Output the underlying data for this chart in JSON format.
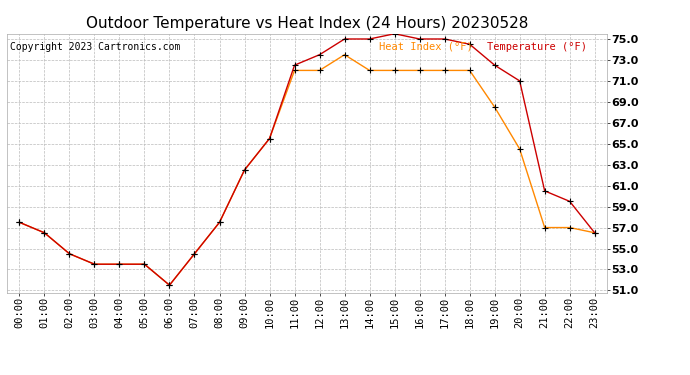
{
  "title": "Outdoor Temperature vs Heat Index (24 Hours) 20230528",
  "copyright": "Copyright 2023 Cartronics.com",
  "legend_heat": "Heat Index (°F)",
  "legend_temp": "Temperature (°F)",
  "hours": [
    "00:00",
    "01:00",
    "02:00",
    "03:00",
    "04:00",
    "05:00",
    "06:00",
    "07:00",
    "08:00",
    "09:00",
    "10:00",
    "11:00",
    "12:00",
    "13:00",
    "14:00",
    "15:00",
    "16:00",
    "17:00",
    "18:00",
    "19:00",
    "20:00",
    "21:00",
    "22:00",
    "23:00"
  ],
  "temperature": [
    57.5,
    56.5,
    54.5,
    53.5,
    53.5,
    53.5,
    51.5,
    54.5,
    57.5,
    62.5,
    65.5,
    72.5,
    73.5,
    75.0,
    75.0,
    75.5,
    75.0,
    75.0,
    74.5,
    72.5,
    71.0,
    60.5,
    59.5,
    56.5
  ],
  "heat_index": [
    57.5,
    56.5,
    54.5,
    53.5,
    53.5,
    53.5,
    51.5,
    54.5,
    57.5,
    62.5,
    65.5,
    72.0,
    72.0,
    73.5,
    72.0,
    72.0,
    72.0,
    72.0,
    72.0,
    68.5,
    64.5,
    57.0,
    57.0,
    56.5
  ],
  "ylim": [
    51.0,
    75.0
  ],
  "yticks": [
    51.0,
    53.0,
    55.0,
    57.0,
    59.0,
    61.0,
    63.0,
    65.0,
    67.0,
    69.0,
    71.0,
    73.0,
    75.0
  ],
  "temp_color": "#cc0000",
  "heat_color": "#ff8800",
  "bg_color": "#ffffff",
  "grid_color": "#bbbbbb",
  "title_fontsize": 11,
  "tick_fontsize": 7.5,
  "copyright_fontsize": 7
}
